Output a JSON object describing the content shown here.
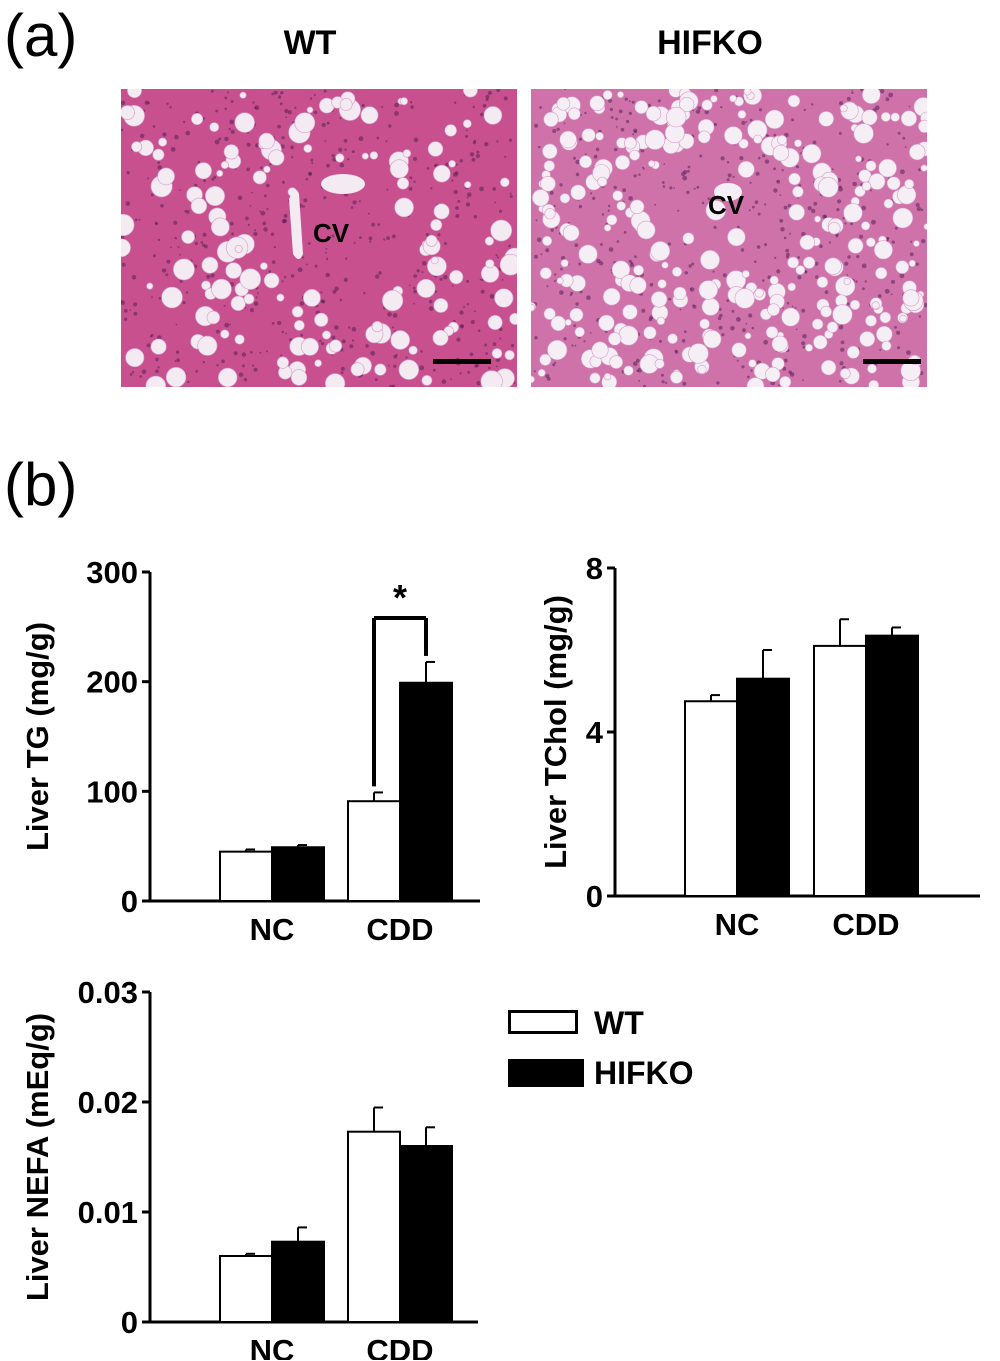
{
  "figure": {
    "panel_a_label": "(a)",
    "panel_b_label": "(b)"
  },
  "histology": {
    "images": [
      {
        "title": "WT",
        "annotation": "CV",
        "tissue_color": "#c8508f",
        "vacuole_color": "#f3eaf2",
        "vacuole_density": "moderate"
      },
      {
        "title": "HIFKO",
        "annotation": "CV",
        "tissue_color": "#cf72aa",
        "vacuole_color": "#f6eef5",
        "vacuole_density": "high"
      }
    ]
  },
  "chart_data": [
    {
      "type": "bar",
      "ylabel": "Liver TG (mg/g)",
      "categories": [
        "NC",
        "CDD"
      ],
      "series": [
        {
          "name": "WT",
          "color": "#ffffff",
          "values": [
            45,
            91
          ],
          "errors": [
            2,
            8
          ]
        },
        {
          "name": "HIFKO",
          "color": "#000000",
          "values": [
            49,
            199
          ],
          "errors": [
            2,
            19
          ]
        }
      ],
      "ylim": [
        0,
        300
      ],
      "yticks": [
        0,
        100,
        200,
        300
      ],
      "annotations": [
        {
          "text": "*",
          "between": "CDD WT vs HIFKO"
        }
      ]
    },
    {
      "type": "bar",
      "ylabel": "Liver TChol (mg/g)",
      "categories": [
        "NC",
        "CDD"
      ],
      "series": [
        {
          "name": "WT",
          "color": "#ffffff",
          "values": [
            4.75,
            6.1
          ],
          "errors": [
            0.15,
            0.65
          ]
        },
        {
          "name": "HIFKO",
          "color": "#000000",
          "values": [
            5.3,
            6.35
          ],
          "errors": [
            0.7,
            0.2
          ]
        }
      ],
      "ylim": [
        0,
        8
      ],
      "yticks": [
        0,
        4,
        8
      ]
    },
    {
      "type": "bar",
      "ylabel": "Liver NEFA (mEq/g)",
      "categories": [
        "NC",
        "CDD"
      ],
      "series": [
        {
          "name": "WT",
          "color": "#ffffff",
          "values": [
            0.006,
            0.0173
          ],
          "errors": [
            0.0002,
            0.0022
          ]
        },
        {
          "name": "HIFKO",
          "color": "#000000",
          "values": [
            0.0073,
            0.016
          ],
          "errors": [
            0.0013,
            0.0017
          ]
        }
      ],
      "ylim": [
        0,
        0.03
      ],
      "yticks": [
        "0",
        "0.01",
        "0.02",
        "0.03"
      ]
    }
  ],
  "legend": {
    "placement": "right-of-NEFA",
    "entries": [
      {
        "label": "WT",
        "color": "#ffffff"
      },
      {
        "label": "HIFKO",
        "color": "#000000"
      }
    ]
  }
}
